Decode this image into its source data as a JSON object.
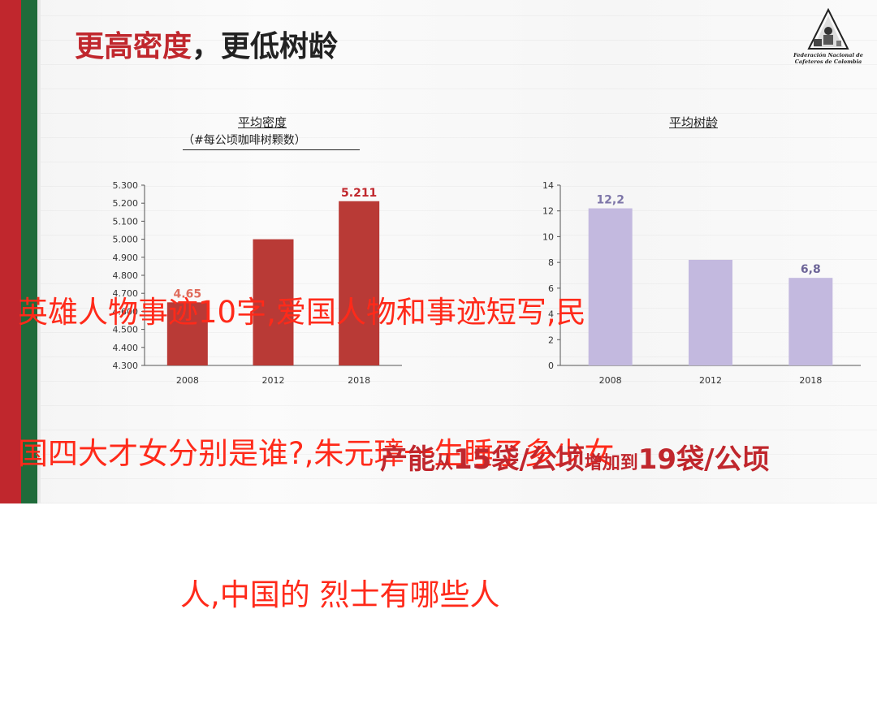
{
  "slide": {
    "title_red": "更高密度",
    "title_dark": "，更低树龄",
    "logo_text_1": "Federación Nacional de",
    "logo_text_2": "Cafeteros de Colombia",
    "overlay_lines": [
      "英雄人物事迹10字,爱国人物和事迹短写,民",
      "国四大才女分别是谁?,朱元璋一生睡了多少女",
      "人,中国的 烈士有哪些人"
    ],
    "bottom_1": "产能",
    "bottom_2": "从",
    "bottom_3": "15袋/公顷",
    "bottom_4": "增加到",
    "bottom_5": "19袋/公顷",
    "colors": {
      "red": "#c0272d",
      "green": "#1f6b3a",
      "overlay": "#ff2a1a",
      "bar_red": "#b93a36",
      "bar_purple": "#c3b9df"
    }
  },
  "chart_data": [
    {
      "type": "bar",
      "title": "平均密度",
      "subtitle": "（#每公顷咖啡树颗数）",
      "categories": [
        "2008",
        "2012",
        "2018"
      ],
      "values": [
        4.65,
        5.0,
        5.211
      ],
      "data_labels": [
        "4.65",
        "",
        "5.211"
      ],
      "ylim": [
        4.3,
        5.3
      ],
      "yticks": [
        "5.300",
        "5.200",
        "5.100",
        "5.000",
        "4.900",
        "4.800",
        "4.700",
        "4.600",
        "4.500",
        "4.400",
        "4.300"
      ],
      "ytick_values": [
        5.3,
        5.2,
        5.1,
        5.0,
        4.9,
        4.8,
        4.7,
        4.6,
        4.5,
        4.4,
        4.3
      ],
      "color": "#b93a36",
      "label_colors": [
        "#e06c5c",
        "#c0272d",
        "#c0272d"
      ],
      "grid": false
    },
    {
      "type": "bar",
      "title": "平均树龄",
      "categories": [
        "2008",
        "2012",
        "2018"
      ],
      "values": [
        12.2,
        8.2,
        6.8
      ],
      "data_labels": [
        "12,2",
        "",
        "6,8"
      ],
      "ylim": [
        0,
        14
      ],
      "yticks": [
        "14",
        "12",
        "10",
        "8",
        "6",
        "4",
        "2",
        "0"
      ],
      "ytick_values": [
        14,
        12,
        10,
        8,
        6,
        4,
        2,
        0
      ],
      "color": "#c3b9df",
      "label_colors": [
        "#7d75a8",
        "#7d75a8",
        "#6d6598"
      ],
      "grid": false
    }
  ]
}
